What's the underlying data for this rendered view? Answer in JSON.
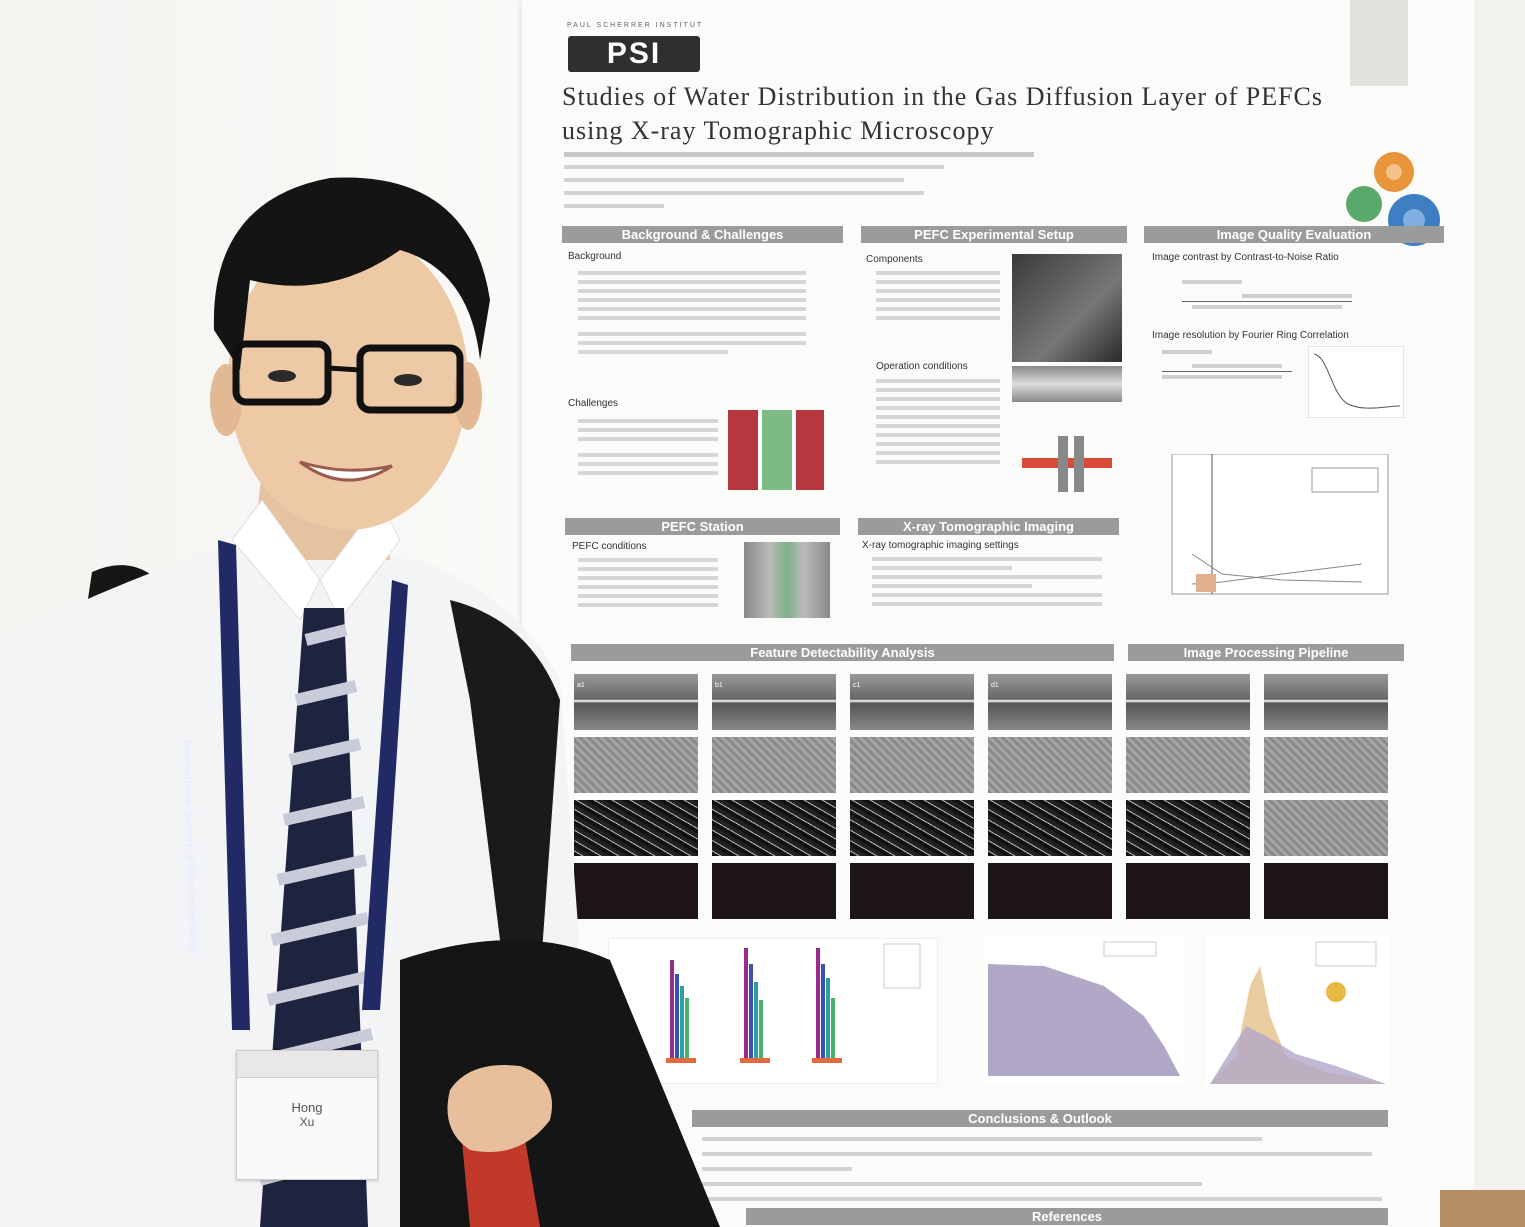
{
  "poster": {
    "institute": "PAUL SCHERRER INSTITUT",
    "logo": "PSI",
    "title_line1": "Studies of Water Distribution in the Gas Diffusion Layer of PEFCs",
    "title_line2": "using X-ray Tomographic Microscopy",
    "sections": {
      "background": "Background & Challenges",
      "setup": "PEFC Experimental Setup",
      "quality": "Image Quality Evaluation",
      "pefc": "PEFC Station",
      "xray": "X-ray Tomographic Imaging",
      "feature": "Feature Detectability Analysis",
      "pipeline": "Image Processing Pipeline",
      "conclusions": "Conclusions & Outlook",
      "references": "References"
    },
    "subheads": {
      "background": "Background",
      "challenges": "Challenges",
      "components": "Components",
      "operation": "Operation conditions",
      "pefc_conditions": "PEFC conditions",
      "xray_settings": "X-ray tomographic imaging settings",
      "cnr": "Image contrast by Contrast-to-Noise Ratio",
      "frc": "Image resolution by Fourier Ring Correlation"
    },
    "image_labels": [
      "a1",
      "b1",
      "c1",
      "d1"
    ]
  },
  "badge": {
    "line1": "Hong",
    "line2": "Xu"
  },
  "lanyard": {
    "text": "International Society of Electrochemistry"
  },
  "colors": {
    "wall": "#f3f2ef",
    "poster": "#fbfbfa",
    "header_bar": "#9b9b9b",
    "shirt": "#f4f5f6",
    "tie_navy": "#1e2340",
    "lanyard": "#222a66",
    "backpack": "#161616",
    "red_bag": "#c0392b"
  }
}
